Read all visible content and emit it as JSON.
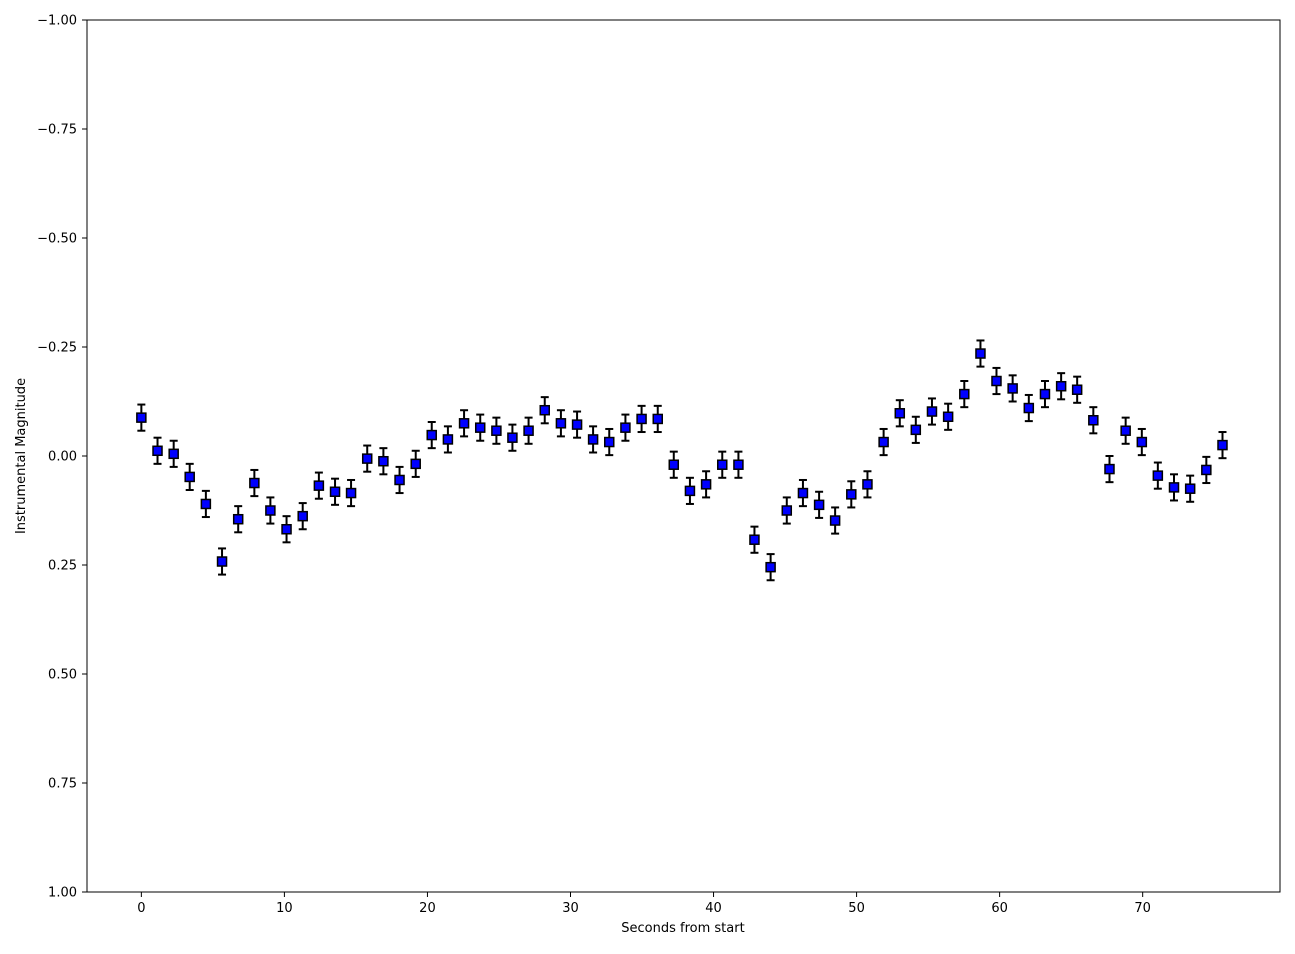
{
  "chart_data": {
    "type": "scatter",
    "xlabel": "Seconds from start",
    "ylabel": "Instrumental Magnitude",
    "xlim": [
      -3.8,
      79.6
    ],
    "ylim": [
      1.0,
      -1.0
    ],
    "y_inverted": true,
    "xticks": [
      0,
      10,
      20,
      30,
      40,
      50,
      60,
      70
    ],
    "xtick_labels": [
      "0",
      "10",
      "20",
      "30",
      "40",
      "50",
      "60",
      "70"
    ],
    "yticks": [
      -1.0,
      -0.75,
      -0.5,
      -0.25,
      0.0,
      0.25,
      0.5,
      0.75,
      1.0
    ],
    "ytick_labels": [
      "−1.00",
      "−0.75",
      "−0.50",
      "−0.25",
      "0.00",
      "0.25",
      "0.50",
      "0.75",
      "1.00"
    ],
    "marker": "square",
    "marker_color": "#0000ff",
    "edge_color": "#000000",
    "grid": false,
    "x": [
      0.0,
      1.13,
      2.26,
      3.38,
      4.51,
      5.64,
      6.77,
      7.9,
      9.02,
      10.15,
      11.28,
      12.41,
      13.54,
      14.66,
      15.79,
      16.92,
      18.05,
      19.18,
      20.3,
      21.43,
      22.56,
      23.69,
      24.82,
      25.94,
      27.07,
      28.2,
      29.33,
      30.46,
      31.58,
      32.71,
      33.84,
      34.97,
      36.1,
      37.22,
      38.35,
      39.48,
      40.61,
      41.74,
      42.86,
      43.99,
      45.12,
      46.25,
      47.38,
      48.5,
      49.63,
      50.76,
      51.89,
      53.02,
      54.14,
      55.27,
      56.4,
      57.53,
      58.66,
      59.78,
      60.91,
      62.04,
      63.17,
      64.3,
      65.42,
      66.55,
      67.68,
      68.81,
      69.94,
      71.06,
      72.19,
      73.32,
      74.45,
      75.58
    ],
    "y": [
      -0.088,
      -0.012,
      -0.005,
      0.048,
      0.11,
      0.242,
      0.145,
      0.062,
      0.125,
      0.168,
      0.138,
      0.068,
      0.082,
      0.085,
      0.006,
      0.012,
      0.055,
      0.018,
      -0.048,
      -0.038,
      -0.075,
      -0.065,
      -0.058,
      -0.042,
      -0.058,
      -0.105,
      -0.075,
      -0.072,
      -0.038,
      -0.032,
      -0.065,
      -0.085,
      -0.085,
      0.02,
      0.08,
      0.065,
      0.02,
      0.02,
      0.192,
      0.255,
      0.125,
      0.085,
      0.112,
      0.148,
      0.088,
      0.065,
      -0.032,
      -0.098,
      -0.06,
      -0.102,
      -0.09,
      -0.142,
      -0.235,
      -0.172,
      -0.155,
      -0.11,
      -0.142,
      -0.16,
      -0.152,
      -0.082,
      0.03,
      -0.058,
      -0.032,
      0.045,
      0.072,
      0.075,
      0.032,
      -0.025
    ],
    "yerr": 0.03
  }
}
